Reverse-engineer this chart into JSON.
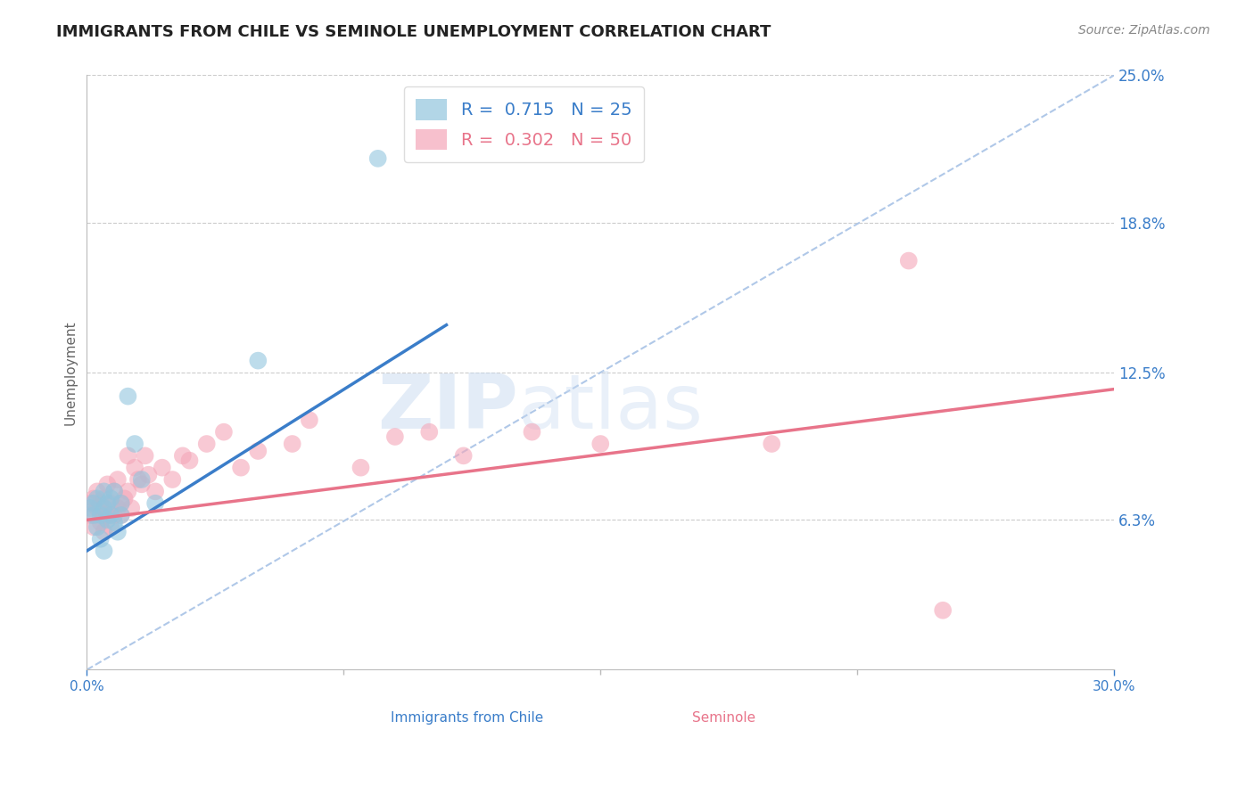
{
  "title": "IMMIGRANTS FROM CHILE VS SEMINOLE UNEMPLOYMENT CORRELATION CHART",
  "source": "Source: ZipAtlas.com",
  "xlabel_left": "Immigrants from Chile",
  "xlabel_right": "Seminole",
  "ylabel": "Unemployment",
  "xlim": [
    0.0,
    0.3
  ],
  "ylim": [
    0.0,
    0.25
  ],
  "ytick_right_labels": [
    "6.3%",
    "12.5%",
    "18.8%",
    "25.0%"
  ],
  "ytick_right_values": [
    0.063,
    0.125,
    0.188,
    0.25
  ],
  "r_blue": 0.715,
  "n_blue": 25,
  "r_pink": 0.302,
  "n_pink": 50,
  "blue_color": "#92c5de",
  "pink_color": "#f4a6b8",
  "blue_line_color": "#3a7dc9",
  "pink_line_color": "#e8748a",
  "ref_line_color": "#b0c8e8",
  "watermark_zip": "ZIP",
  "watermark_atlas": "atlas",
  "blue_scatter_x": [
    0.001,
    0.002,
    0.002,
    0.003,
    0.003,
    0.004,
    0.004,
    0.005,
    0.005,
    0.005,
    0.006,
    0.006,
    0.007,
    0.007,
    0.008,
    0.008,
    0.009,
    0.01,
    0.01,
    0.012,
    0.014,
    0.016,
    0.02,
    0.05,
    0.085
  ],
  "blue_scatter_y": [
    0.068,
    0.065,
    0.07,
    0.06,
    0.072,
    0.055,
    0.065,
    0.05,
    0.068,
    0.075,
    0.063,
    0.07,
    0.065,
    0.072,
    0.062,
    0.075,
    0.058,
    0.065,
    0.07,
    0.115,
    0.095,
    0.08,
    0.07,
    0.13,
    0.215
  ],
  "pink_scatter_x": [
    0.001,
    0.001,
    0.002,
    0.002,
    0.003,
    0.003,
    0.004,
    0.004,
    0.005,
    0.005,
    0.005,
    0.006,
    0.006,
    0.007,
    0.007,
    0.008,
    0.008,
    0.009,
    0.009,
    0.01,
    0.01,
    0.011,
    0.012,
    0.012,
    0.013,
    0.014,
    0.015,
    0.016,
    0.017,
    0.018,
    0.02,
    0.022,
    0.025,
    0.028,
    0.03,
    0.035,
    0.04,
    0.045,
    0.05,
    0.06,
    0.065,
    0.08,
    0.09,
    0.1,
    0.11,
    0.13,
    0.15,
    0.2,
    0.24,
    0.25
  ],
  "pink_scatter_y": [
    0.065,
    0.07,
    0.06,
    0.072,
    0.068,
    0.075,
    0.062,
    0.07,
    0.058,
    0.065,
    0.072,
    0.065,
    0.078,
    0.06,
    0.07,
    0.065,
    0.075,
    0.068,
    0.08,
    0.065,
    0.07,
    0.072,
    0.075,
    0.09,
    0.068,
    0.085,
    0.08,
    0.078,
    0.09,
    0.082,
    0.075,
    0.085,
    0.08,
    0.09,
    0.088,
    0.095,
    0.1,
    0.085,
    0.092,
    0.095,
    0.105,
    0.085,
    0.098,
    0.1,
    0.09,
    0.1,
    0.095,
    0.095,
    0.172,
    0.025
  ],
  "blue_line_x": [
    0.0,
    0.105
  ],
  "blue_line_y": [
    0.05,
    0.145
  ],
  "pink_line_x": [
    0.0,
    0.3
  ],
  "pink_line_y": [
    0.063,
    0.118
  ]
}
